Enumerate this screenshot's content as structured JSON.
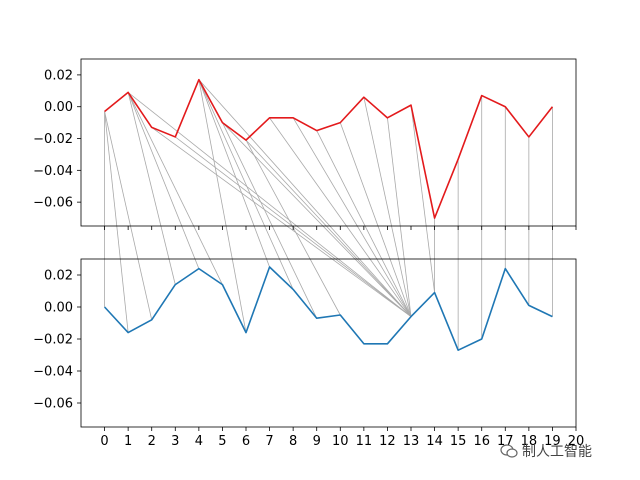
{
  "chart_data": [
    {
      "type": "line",
      "panel": "top",
      "x": [
        0,
        1,
        2,
        3,
        4,
        5,
        6,
        7,
        8,
        9,
        10,
        11,
        12,
        13,
        14,
        15,
        16,
        17,
        18,
        19
      ],
      "series": [
        {
          "values": [
            -0.003,
            0.009,
            -0.013,
            -0.019,
            0.017,
            -0.01,
            -0.021,
            -0.007,
            -0.007,
            -0.015,
            -0.01,
            0.006,
            -0.007,
            0.001,
            -0.07,
            -0.033,
            0.007,
            0.0,
            -0.019,
            0.0
          ],
          "color": "#e31a1c"
        }
      ],
      "xlim": [
        -1.0,
        20.0
      ],
      "ylim": [
        -0.075,
        0.03
      ],
      "yticks": [
        "0.02",
        "0.00",
        "−0.02",
        "−0.04",
        "−0.06"
      ],
      "ytick_values": [
        0.02,
        0.0,
        -0.02,
        -0.04,
        -0.06
      ],
      "xtick_labels_visible": false
    },
    {
      "type": "line",
      "panel": "bottom",
      "x": [
        0,
        1,
        2,
        3,
        4,
        5,
        6,
        7,
        8,
        9,
        10,
        11,
        12,
        13,
        14,
        15,
        16,
        17,
        18,
        19
      ],
      "series": [
        {
          "values": [
            0.0,
            -0.016,
            -0.008,
            0.014,
            0.024,
            0.014,
            -0.016,
            0.025,
            0.011,
            -0.007,
            -0.005,
            -0.023,
            -0.023,
            -0.006,
            0.009,
            -0.027,
            -0.02,
            0.024,
            0.001,
            -0.006
          ],
          "color": "#1f77b4"
        }
      ],
      "xlim": [
        -1.0,
        20.0
      ],
      "ylim": [
        -0.075,
        0.03
      ],
      "yticks": [
        "0.02",
        "0.00",
        "−0.02",
        "−0.04",
        "−0.06"
      ],
      "ytick_values": [
        0.02,
        0.0,
        -0.02,
        -0.04,
        -0.06
      ],
      "xticks": [
        "0",
        "1",
        "2",
        "3",
        "4",
        "5",
        "6",
        "7",
        "8",
        "9",
        "10",
        "11",
        "12",
        "13",
        "14",
        "15",
        "16",
        "17",
        "18",
        "19",
        "20"
      ]
    }
  ],
  "alignment_pairs": [
    [
      0,
      0
    ],
    [
      0,
      1
    ],
    [
      0,
      2
    ],
    [
      1,
      3
    ],
    [
      1,
      4
    ],
    [
      1,
      5
    ],
    [
      1,
      13
    ],
    [
      2,
      13
    ],
    [
      3,
      13
    ],
    [
      4,
      6
    ],
    [
      4,
      7
    ],
    [
      4,
      8
    ],
    [
      4,
      13
    ],
    [
      5,
      9
    ],
    [
      5,
      13
    ],
    [
      6,
      10
    ],
    [
      6,
      13
    ],
    [
      7,
      13
    ],
    [
      8,
      13
    ],
    [
      9,
      13
    ],
    [
      10,
      13
    ],
    [
      11,
      13
    ],
    [
      12,
      13
    ],
    [
      13,
      14
    ],
    [
      14,
      14
    ],
    [
      15,
      15
    ],
    [
      16,
      16
    ],
    [
      17,
      17
    ],
    [
      18,
      18
    ],
    [
      19,
      19
    ]
  ],
  "watermark": {
    "text": "制人工智能",
    "icon": "wechat-icon"
  }
}
